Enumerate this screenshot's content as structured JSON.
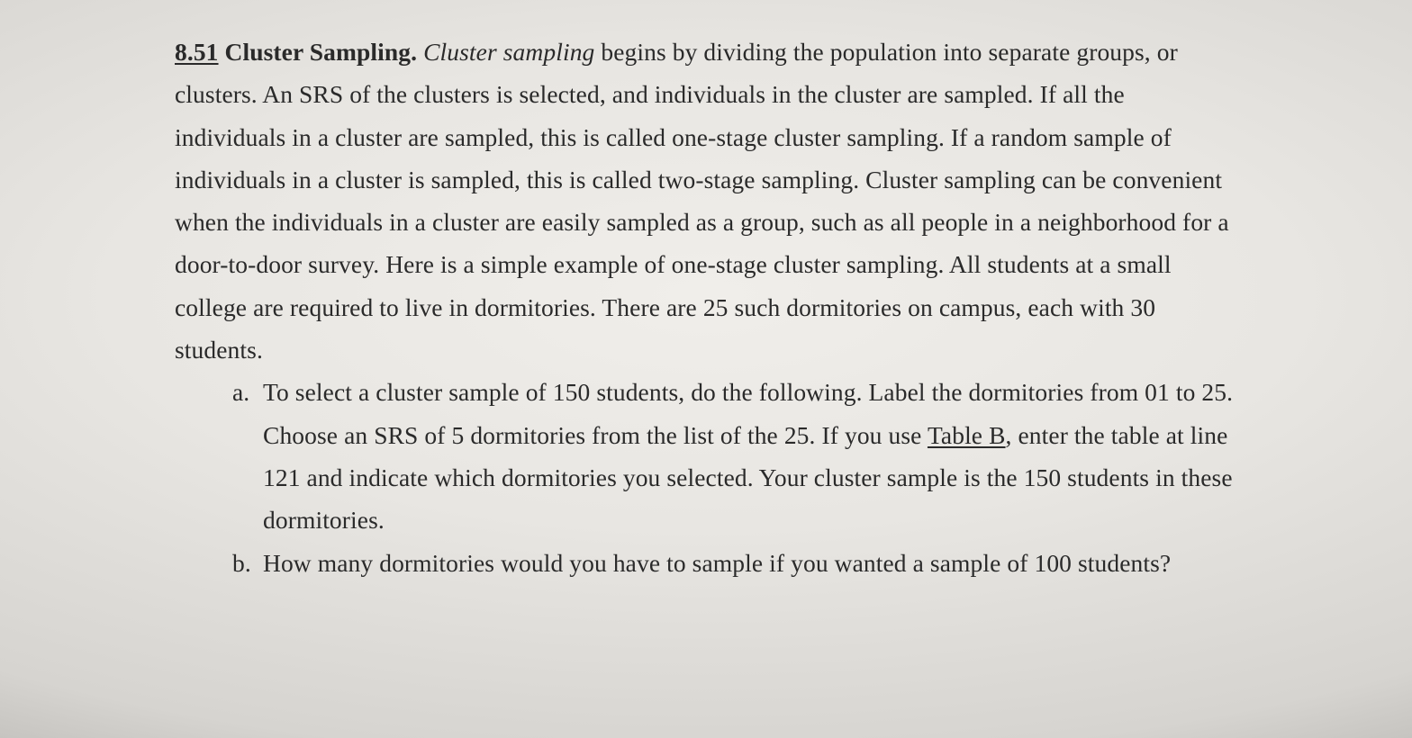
{
  "typography": {
    "font_family": "Georgia, 'Times New Roman', serif",
    "base_fontsize_pt": 21,
    "line_height": 1.72,
    "text_color": "#2a2a2a",
    "background_gradient": {
      "type": "radial",
      "stops": [
        "#f0eeea",
        "#e8e6e2",
        "#d6d4d0",
        "#a8a6a2",
        "#787672"
      ]
    }
  },
  "problem": {
    "number": "8.51",
    "title": "Cluster Sampling.",
    "italic_term": "Cluster sampling",
    "intro_after_italic": " begins by dividing the population into separate groups, or clusters. An SRS of the clusters is selected, and individuals in the cluster are sampled. If all the individuals in a cluster are sampled, this is called one-stage cluster sampling. If a random sample of individuals in a cluster is sampled, this is called two-stage sampling. Cluster sampling can be convenient when the individuals in a cluster are easily sampled as a group, such as all people in a neighborhood for a door-to-door survey. Here is a simple example of one-stage cluster sampling. All students at a small college are required to live in dormitories. There are 25 such dormitories on campus, each with 30 students.",
    "parts": {
      "a": {
        "marker": "a.",
        "text_before_link": "To select a cluster sample of 150 students, do the following. Label the dormitories from 01 to 25. Choose an SRS of 5 dormitories from the list of the 25. If you use ",
        "link_text": "Table B",
        "text_after_link": ", enter the table at line 121 and indicate which dormitories you selected. Your cluster sample is the 150 students in these dormitories."
      },
      "b": {
        "marker": "b.",
        "text": "How many dormitories would you have to sample if you wanted a sample of 100 students?"
      }
    }
  }
}
